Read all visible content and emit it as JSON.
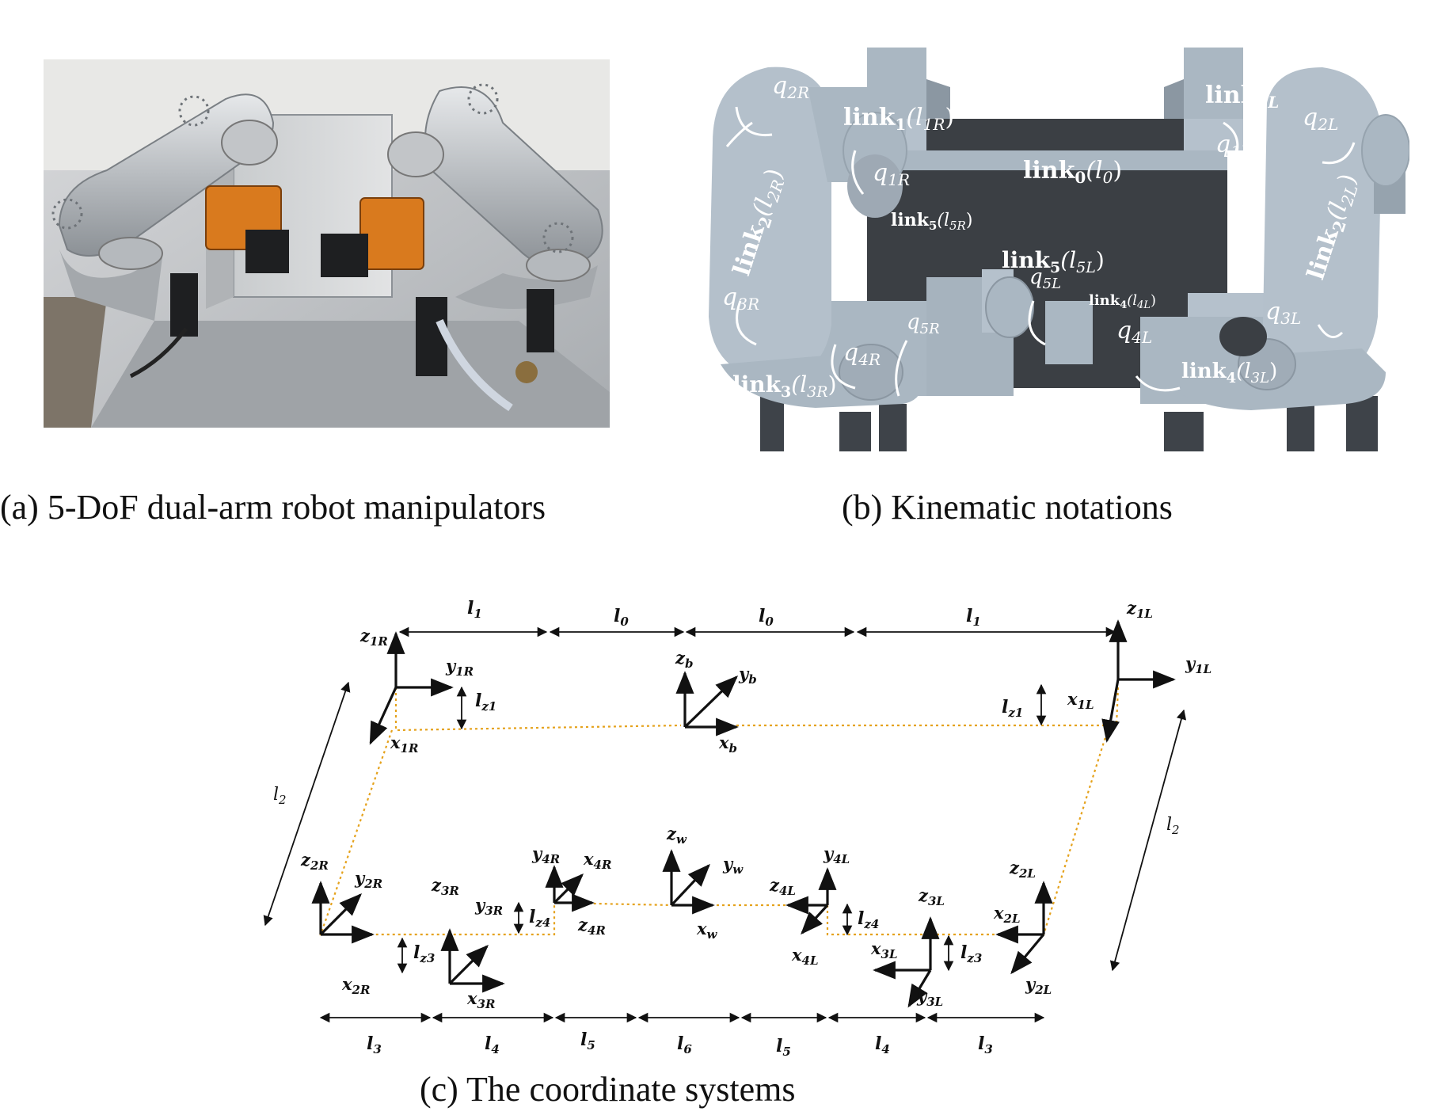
{
  "captions": {
    "a": "(a) 5-DoF dual-arm robot manipulators",
    "b": "(b) Kinematic notations",
    "c": "(c) The coordinate systems"
  },
  "notations": {
    "q2R": "q",
    "q2R_s": "2R",
    "link1R": "link",
    "link1R_s": "1",
    "link1R_p": "(l",
    "link1R_ps": "1R",
    "link1R_e": ")",
    "link1L": "link",
    "link1L_s": "1L",
    "q2L": "q",
    "q2L_s": "2L",
    "q1R": "q",
    "q1R_s": "1R",
    "link0": "link",
    "link0_s": "0",
    "link0_p": "(l",
    "link0_ps": "0",
    "link0_e": ")",
    "q1L": "q",
    "q1L_s": "1L",
    "link2R": "link",
    "link2R_s": "2",
    "link2R_p": "(l",
    "link2R_ps": "2R",
    "link2R_e": ")",
    "link5R": "link",
    "link5R_s": "5",
    "link5R_p": "(l",
    "link5R_ps": "5R",
    "link5R_e": ")",
    "link2L": "link",
    "link2L_s": "2",
    "link2L_p": "(l",
    "link2L_ps": "2L",
    "link2L_e": ")",
    "link5L": "link",
    "link5L_s": "5",
    "link5L_p": "(l",
    "link5L_ps": "5L",
    "link5L_e": ")",
    "q5L": "q",
    "q5L_s": "5L",
    "q3R": "q",
    "q3R_s": "3R",
    "link4L": "link",
    "link4L_s": "4",
    "link4L_p": "(l",
    "link4L_ps": "4L",
    "link4L_e": ")",
    "q5R": "q",
    "q5R_s": "5R",
    "q4R": "q",
    "q4R_s": "4R",
    "q4L": "q",
    "q4L_s": "4L",
    "q3L": "q",
    "q3L_s": "3L",
    "link3R": "link",
    "link3R_s": "3",
    "link3R_p": "(l",
    "link3R_ps": "3R",
    "link3R_e": ")",
    "link4Lb": "link",
    "link4Lb_s": "4",
    "link4Lb_p": "(l",
    "link4Lb_ps": "3L",
    "link4Lb_e": ")"
  },
  "frames": {
    "z1R": [
      "z",
      "1R"
    ],
    "y1R": [
      "y",
      "1R"
    ],
    "x1R": [
      "x",
      "1R"
    ],
    "z1L": [
      "z",
      "1L"
    ],
    "y1L": [
      "y",
      "1L"
    ],
    "x1L": [
      "x",
      "1L"
    ],
    "zb": [
      "z",
      "b"
    ],
    "yb": [
      "y",
      "b"
    ],
    "xb": [
      "x",
      "b"
    ],
    "z2R": [
      "z",
      "2R"
    ],
    "y2R": [
      "y",
      "2R"
    ],
    "x2R": [
      "x",
      "2R"
    ],
    "z3R": [
      "z",
      "3R"
    ],
    "y3R": [
      "y",
      "3R"
    ],
    "x3R": [
      "x",
      "3R"
    ],
    "y4R": [
      "y",
      "4R"
    ],
    "x4R": [
      "x",
      "4R"
    ],
    "z4R": [
      "z",
      "4R"
    ],
    "zw": [
      "z",
      "w"
    ],
    "yw": [
      "y",
      "w"
    ],
    "xw": [
      "x",
      "w"
    ],
    "y4L": [
      "y",
      "4L"
    ],
    "z4L": [
      "z",
      "4L"
    ],
    "x4L": [
      "x",
      "4L"
    ],
    "z3L": [
      "z",
      "3L"
    ],
    "x3L": [
      "x",
      "3L"
    ],
    "y3L": [
      "y",
      "3L"
    ],
    "z2L": [
      "z",
      "2L"
    ],
    "x2L": [
      "x",
      "2L"
    ],
    "y2L": [
      "y",
      "2L"
    ]
  },
  "dims": {
    "top_l1a": [
      "l",
      "1"
    ],
    "top_l0a": [
      "l",
      "0"
    ],
    "top_l0b": [
      "l",
      "0"
    ],
    "top_l1b": [
      "l",
      "1"
    ],
    "lz1R": [
      "l",
      "z1"
    ],
    "lz1L": [
      "l",
      "z1"
    ],
    "l2R": [
      "l",
      "2"
    ],
    "l2L": [
      "l",
      "2"
    ],
    "lz3R": [
      "l",
      "z3"
    ],
    "lz4R": [
      "l",
      "z4"
    ],
    "lz4L": [
      "l",
      "z4"
    ],
    "lz3L": [
      "l",
      "z3"
    ],
    "bot_l3a": [
      "l",
      "3"
    ],
    "bot_l4a": [
      "l",
      "4"
    ],
    "bot_l5a": [
      "l",
      "5"
    ],
    "bot_l6": [
      "l",
      "6"
    ],
    "bot_l5b": [
      "l",
      "5"
    ],
    "bot_l4b": [
      "l",
      "4"
    ],
    "bot_l3b": [
      "l",
      "3"
    ]
  }
}
